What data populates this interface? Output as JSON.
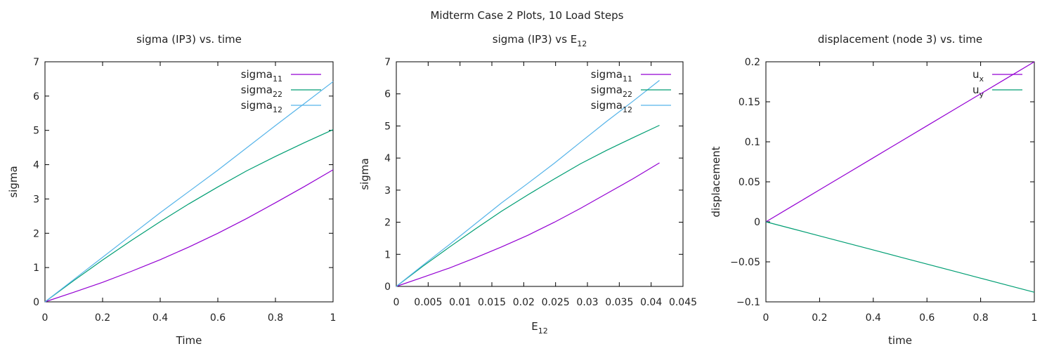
{
  "figure": {
    "suptitle": "Midterm Case 2 Plots, 10 Load Steps"
  },
  "colors": {
    "purple": "#9400d3",
    "teal": "#009e73",
    "skyblue": "#56b4e9"
  },
  "chart_data": [
    {
      "type": "line",
      "title": "sigma (IP3) vs. time",
      "xlabel": "Time",
      "ylabel": "sigma",
      "xlim": [
        0,
        1
      ],
      "ylim": [
        0,
        7
      ],
      "xticks": [
        0,
        0.2,
        0.4,
        0.6,
        0.8,
        1
      ],
      "xtick_labels": [
        "0",
        "0.2",
        "0.4",
        "0.6",
        "0.8",
        "1"
      ],
      "yticks": [
        0,
        1,
        2,
        3,
        4,
        5,
        6,
        7
      ],
      "ytick_labels": [
        "0",
        "1",
        "2",
        "3",
        "4",
        "5",
        "6",
        "7"
      ],
      "grid": false,
      "legend_position": "top-right",
      "x": [
        0,
        0.1,
        0.2,
        0.3,
        0.4,
        0.5,
        0.6,
        0.7,
        0.8,
        0.9,
        1.0
      ],
      "series": [
        {
          "name": "sigma",
          "subscript": "11",
          "color": "#9400d3",
          "values": [
            0,
            0.28,
            0.57,
            0.89,
            1.23,
            1.6,
            2.0,
            2.43,
            2.89,
            3.36,
            3.85
          ]
        },
        {
          "name": "sigma",
          "subscript": "22",
          "color": "#009e73",
          "values": [
            0,
            0.62,
            1.22,
            1.79,
            2.34,
            2.86,
            3.35,
            3.82,
            4.24,
            4.64,
            5.02
          ]
        },
        {
          "name": "sigma",
          "subscript": "12",
          "color": "#56b4e9",
          "values": [
            0,
            0.65,
            1.3,
            1.95,
            2.6,
            3.22,
            3.84,
            4.49,
            5.14,
            5.78,
            6.42
          ]
        }
      ]
    },
    {
      "type": "line",
      "title": "sigma (IP3) vs E",
      "title_subscript": "12",
      "xlabel": "E",
      "xlabel_subscript": "12",
      "ylabel": "sigma",
      "xlim": [
        0,
        0.045
      ],
      "ylim": [
        0,
        7
      ],
      "xticks": [
        0,
        0.005,
        0.01,
        0.015,
        0.02,
        0.025,
        0.03,
        0.035,
        0.04,
        0.045
      ],
      "xtick_labels": [
        "0",
        "0.005",
        "0.01",
        "0.015",
        "0.02",
        "0.025",
        "0.03",
        "0.035",
        "0.04",
        "0.045"
      ],
      "yticks": [
        0,
        1,
        2,
        3,
        4,
        5,
        6,
        7
      ],
      "ytick_labels": [
        "0",
        "1",
        "2",
        "3",
        "4",
        "5",
        "6",
        "7"
      ],
      "grid": false,
      "legend_position": "top-right",
      "x": [
        0,
        0.0041,
        0.0083,
        0.0124,
        0.0165,
        0.0207,
        0.0248,
        0.0289,
        0.033,
        0.0372,
        0.0413
      ],
      "series": [
        {
          "name": "sigma",
          "subscript": "11",
          "color": "#9400d3",
          "values": [
            0,
            0.28,
            0.57,
            0.89,
            1.23,
            1.6,
            2.0,
            2.43,
            2.89,
            3.36,
            3.85
          ]
        },
        {
          "name": "sigma",
          "subscript": "22",
          "color": "#009e73",
          "values": [
            0,
            0.62,
            1.22,
            1.79,
            2.34,
            2.86,
            3.35,
            3.82,
            4.24,
            4.64,
            5.02
          ]
        },
        {
          "name": "sigma",
          "subscript": "12",
          "color": "#56b4e9",
          "values": [
            0,
            0.65,
            1.3,
            1.95,
            2.6,
            3.22,
            3.84,
            4.49,
            5.14,
            5.78,
            6.42
          ]
        }
      ]
    },
    {
      "type": "line",
      "title": "displacement (node 3) vs. time",
      "xlabel": "time",
      "ylabel": "displacement",
      "xlim": [
        0,
        1
      ],
      "ylim": [
        -0.1,
        0.2
      ],
      "xticks": [
        0,
        0.2,
        0.4,
        0.6,
        0.8,
        1
      ],
      "xtick_labels": [
        "0",
        "0.2",
        "0.4",
        "0.6",
        "0.8",
        "1"
      ],
      "yticks": [
        -0.1,
        -0.05,
        0,
        0.05,
        0.1,
        0.15,
        0.2
      ],
      "ytick_labels": [
        "−0.1",
        "−0.05",
        "0",
        "0.05",
        "0.1",
        "0.15",
        "0.2"
      ],
      "grid": false,
      "legend_position": "top-right",
      "x": [
        0,
        0.1,
        0.2,
        0.3,
        0.4,
        0.5,
        0.6,
        0.7,
        0.8,
        0.9,
        1.0
      ],
      "series": [
        {
          "name": "u",
          "subscript": "x",
          "color": "#9400d3",
          "values": [
            0,
            0.02,
            0.04,
            0.06,
            0.08,
            0.1,
            0.12,
            0.14,
            0.16,
            0.18,
            0.2
          ]
        },
        {
          "name": "u",
          "subscript": "y",
          "color": "#009e73",
          "values": [
            0,
            -0.0088,
            -0.0176,
            -0.0264,
            -0.0352,
            -0.044,
            -0.0528,
            -0.0616,
            -0.0704,
            -0.0792,
            -0.088
          ]
        }
      ]
    }
  ]
}
